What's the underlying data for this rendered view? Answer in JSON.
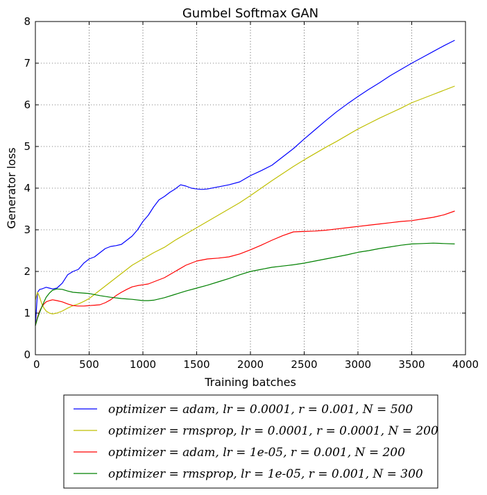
{
  "chart_data": {
    "type": "line",
    "title": "Gumbel Softmax GAN",
    "xlabel": "Training batches",
    "ylabel": "Generator loss",
    "xlim": [
      0,
      4000
    ],
    "ylim": [
      0,
      8
    ],
    "xticks": [
      0,
      500,
      1000,
      1500,
      2000,
      2500,
      3000,
      3500,
      4000
    ],
    "yticks": [
      0,
      1,
      2,
      3,
      4,
      5,
      6,
      7,
      8
    ],
    "grid": true,
    "legend": "below-plot",
    "series": [
      {
        "name": "optimizer = adam, lr = 0.0001, r = 0.001, N = 500",
        "color": "#0000ff",
        "x": [
          0,
          20,
          40,
          60,
          80,
          100,
          130,
          160,
          200,
          250,
          300,
          350,
          400,
          450,
          500,
          550,
          600,
          650,
          700,
          750,
          800,
          850,
          900,
          950,
          1000,
          1050,
          1100,
          1150,
          1200,
          1250,
          1300,
          1350,
          1400,
          1450,
          1500,
          1550,
          1600,
          1700,
          1800,
          1900,
          2000,
          2100,
          2200,
          2300,
          2400,
          2500,
          2600,
          2700,
          2800,
          2900,
          3000,
          3100,
          3200,
          3300,
          3400,
          3500,
          3600,
          3700,
          3800,
          3900
        ],
        "y": [
          0.7,
          1.5,
          1.57,
          1.58,
          1.6,
          1.62,
          1.6,
          1.58,
          1.6,
          1.72,
          1.92,
          2.0,
          2.05,
          2.2,
          2.3,
          2.35,
          2.45,
          2.55,
          2.6,
          2.62,
          2.65,
          2.75,
          2.85,
          3.0,
          3.2,
          3.35,
          3.55,
          3.72,
          3.8,
          3.9,
          3.98,
          4.08,
          4.05,
          4.0,
          3.98,
          3.97,
          3.98,
          4.03,
          4.08,
          4.15,
          4.3,
          4.42,
          4.55,
          4.75,
          4.95,
          5.18,
          5.4,
          5.62,
          5.83,
          6.02,
          6.2,
          6.37,
          6.53,
          6.7,
          6.85,
          7.0,
          7.14,
          7.28,
          7.42,
          7.55
        ]
      },
      {
        "name": "optimizer = rmsprop, lr = 0.0001, r = 0.0001, N = 200",
        "color": "#bfbf00",
        "x": [
          0,
          20,
          40,
          60,
          80,
          100,
          130,
          160,
          200,
          250,
          300,
          350,
          400,
          450,
          500,
          550,
          600,
          700,
          800,
          900,
          1000,
          1100,
          1200,
          1300,
          1400,
          1500,
          1600,
          1700,
          1800,
          1900,
          2000,
          2100,
          2200,
          2300,
          2400,
          2500,
          2600,
          2700,
          2800,
          2900,
          3000,
          3100,
          3200,
          3300,
          3400,
          3500,
          3600,
          3700,
          3800,
          3900
        ],
        "y": [
          1.32,
          1.5,
          1.38,
          1.22,
          1.12,
          1.05,
          1.0,
          0.98,
          1.0,
          1.05,
          1.12,
          1.18,
          1.22,
          1.28,
          1.35,
          1.45,
          1.55,
          1.75,
          1.95,
          2.15,
          2.3,
          2.45,
          2.58,
          2.75,
          2.9,
          3.05,
          3.2,
          3.35,
          3.5,
          3.65,
          3.82,
          4.0,
          4.18,
          4.35,
          4.52,
          4.68,
          4.83,
          4.98,
          5.12,
          5.27,
          5.42,
          5.55,
          5.68,
          5.8,
          5.92,
          6.05,
          6.15,
          6.25,
          6.35,
          6.45
        ]
      },
      {
        "name": "optimizer = adam, lr = 1e-05, r = 0.001, N = 200",
        "color": "#ff0000",
        "x": [
          0,
          20,
          40,
          60,
          80,
          100,
          130,
          160,
          200,
          250,
          300,
          350,
          400,
          450,
          500,
          550,
          600,
          650,
          700,
          750,
          800,
          850,
          900,
          950,
          1000,
          1050,
          1100,
          1200,
          1300,
          1400,
          1500,
          1600,
          1700,
          1800,
          1900,
          2000,
          2100,
          2200,
          2300,
          2400,
          2500,
          2600,
          2700,
          2800,
          2900,
          3000,
          3100,
          3200,
          3300,
          3400,
          3500,
          3600,
          3700,
          3800,
          3900
        ],
        "y": [
          0.7,
          0.9,
          1.05,
          1.15,
          1.22,
          1.27,
          1.3,
          1.32,
          1.3,
          1.27,
          1.22,
          1.18,
          1.17,
          1.17,
          1.18,
          1.19,
          1.2,
          1.25,
          1.32,
          1.42,
          1.5,
          1.57,
          1.63,
          1.66,
          1.68,
          1.7,
          1.75,
          1.85,
          2.0,
          2.15,
          2.25,
          2.3,
          2.32,
          2.35,
          2.42,
          2.52,
          2.63,
          2.75,
          2.86,
          2.95,
          2.96,
          2.97,
          2.99,
          3.02,
          3.05,
          3.08,
          3.11,
          3.14,
          3.17,
          3.2,
          3.22,
          3.26,
          3.3,
          3.36,
          3.45
        ]
      },
      {
        "name": "optimizer = rmsprop, lr = 1e-05, r = 0.001, N = 300",
        "color": "#008000",
        "x": [
          0,
          20,
          40,
          60,
          80,
          100,
          130,
          160,
          200,
          250,
          300,
          350,
          400,
          500,
          600,
          700,
          800,
          900,
          1000,
          1050,
          1100,
          1200,
          1300,
          1400,
          1500,
          1600,
          1700,
          1800,
          1900,
          2000,
          2100,
          2200,
          2300,
          2400,
          2500,
          2600,
          2700,
          2800,
          2900,
          3000,
          3100,
          3200,
          3300,
          3400,
          3500,
          3600,
          3700,
          3800,
          3900
        ],
        "y": [
          0.7,
          0.88,
          1.02,
          1.15,
          1.27,
          1.38,
          1.48,
          1.55,
          1.58,
          1.57,
          1.53,
          1.5,
          1.49,
          1.47,
          1.42,
          1.38,
          1.35,
          1.33,
          1.3,
          1.3,
          1.31,
          1.37,
          1.45,
          1.53,
          1.6,
          1.67,
          1.75,
          1.83,
          1.92,
          2.0,
          2.05,
          2.1,
          2.13,
          2.16,
          2.2,
          2.25,
          2.3,
          2.35,
          2.4,
          2.46,
          2.5,
          2.55,
          2.59,
          2.63,
          2.66,
          2.67,
          2.68,
          2.67,
          2.66
        ]
      }
    ]
  }
}
